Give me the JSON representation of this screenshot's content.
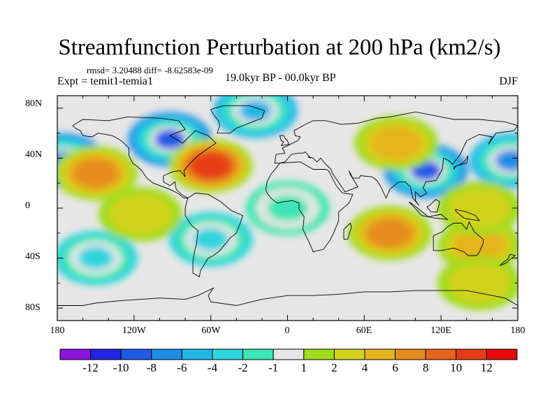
{
  "title": "Streamfunction Perturbation at 200 hPa (km2/s)",
  "stats": "rmsd= 3.20488 diff= -8.62583e-09",
  "expt": "Expt = temit1-temia1",
  "period": "19.0kyr BP - 00.0kyr BP",
  "season": "DJF",
  "chart_data": {
    "type": "heatmap",
    "projection": "cylindrical equidistant",
    "variable": "streamfunction perturbation at 200 hPa",
    "units": "km2/s",
    "x_ticks": [
      "180",
      "120W",
      "60W",
      "0",
      "60E",
      "120E",
      "180"
    ],
    "y_ticks": [
      "80N",
      "40N",
      "0",
      "40S",
      "80S"
    ],
    "xlim": [
      -180,
      180
    ],
    "ylim": [
      -90,
      90
    ],
    "contour_levels": [
      -12,
      -10,
      -8,
      -6,
      -4,
      -2,
      -1,
      1,
      2,
      4,
      6,
      8,
      10,
      12
    ],
    "colorbar_labels": [
      "-12",
      "-10",
      "-8",
      "-6",
      "-4",
      "-2",
      "-1",
      "1",
      "2",
      "4",
      "6",
      "8",
      "10",
      "12"
    ],
    "colorbar_colors": [
      "#8c14dc",
      "#2323e6",
      "#1e5ae6",
      "#1d8ee6",
      "#21b6e6",
      "#2dd6dc",
      "#3ce6b4",
      "#e6e6e6",
      "#a0dc1e",
      "#d2d21e",
      "#e6b41e",
      "#e68c1e",
      "#e6641e",
      "#e63c14",
      "#e60a0a"
    ],
    "features": [
      {
        "lon": -92,
        "lat": 55,
        "value": -9
      },
      {
        "lon": -175,
        "lat": 38,
        "value": -8
      },
      {
        "lon": 108,
        "lat": 30,
        "value": -9
      },
      {
        "lon": 175,
        "lat": 38,
        "value": -7
      },
      {
        "lon": -25,
        "lat": 78,
        "value": -6
      },
      {
        "lon": -60,
        "lat": 34,
        "value": 10
      },
      {
        "lon": -150,
        "lat": 28,
        "value": 7
      },
      {
        "lon": 80,
        "lat": -20,
        "value": 6
      },
      {
        "lon": 85,
        "lat": 52,
        "value": 5
      },
      {
        "lon": 150,
        "lat": -30,
        "value": 4
      },
      {
        "lon": -60,
        "lat": -25,
        "value": -4
      },
      {
        "lon": -150,
        "lat": -40,
        "value": -4
      },
      {
        "lon": 0,
        "lat": 0,
        "value": -2
      },
      {
        "lon": -115,
        "lat": -5,
        "value": 2
      },
      {
        "lon": 150,
        "lat": 0,
        "value": 2
      },
      {
        "lon": 150,
        "lat": -60,
        "value": 2
      }
    ]
  }
}
